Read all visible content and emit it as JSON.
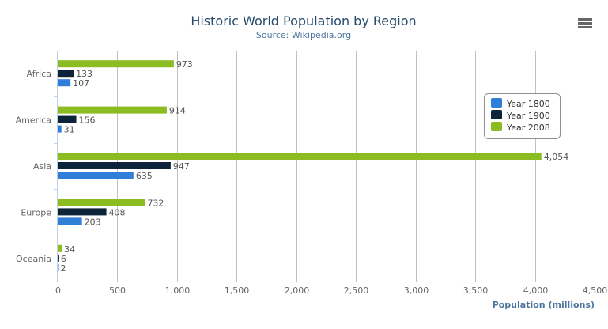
{
  "chart_data": {
    "type": "bar",
    "orientation": "horizontal",
    "title": "Historic World Population by Region",
    "subtitle": "Source: Wikipedia.org",
    "categories": [
      "Africa",
      "America",
      "Asia",
      "Europe",
      "Oceania"
    ],
    "series": [
      {
        "name": "Year 1800",
        "color": "#2f7ed8",
        "values": [
          107,
          31,
          635,
          203,
          2
        ]
      },
      {
        "name": "Year 1900",
        "color": "#0d233a",
        "values": [
          133,
          156,
          947,
          408,
          6
        ]
      },
      {
        "name": "Year 2008",
        "color": "#8bbc21",
        "values": [
          973,
          914,
          4054,
          732,
          34
        ]
      }
    ],
    "xlabel": "Population (millions)",
    "xlim": [
      0,
      4500
    ],
    "ticks": [
      "0",
      "500",
      "1,000",
      "1,500",
      "2,000",
      "2,500",
      "3,000",
      "3,500",
      "4,000",
      "4,500"
    ],
    "tick_values": [
      0,
      500,
      1000,
      1500,
      2000,
      2500,
      3000,
      3500,
      4000,
      4500
    ],
    "grid": true,
    "legend": "right"
  },
  "menu_icon": "hamburger-menu-icon"
}
